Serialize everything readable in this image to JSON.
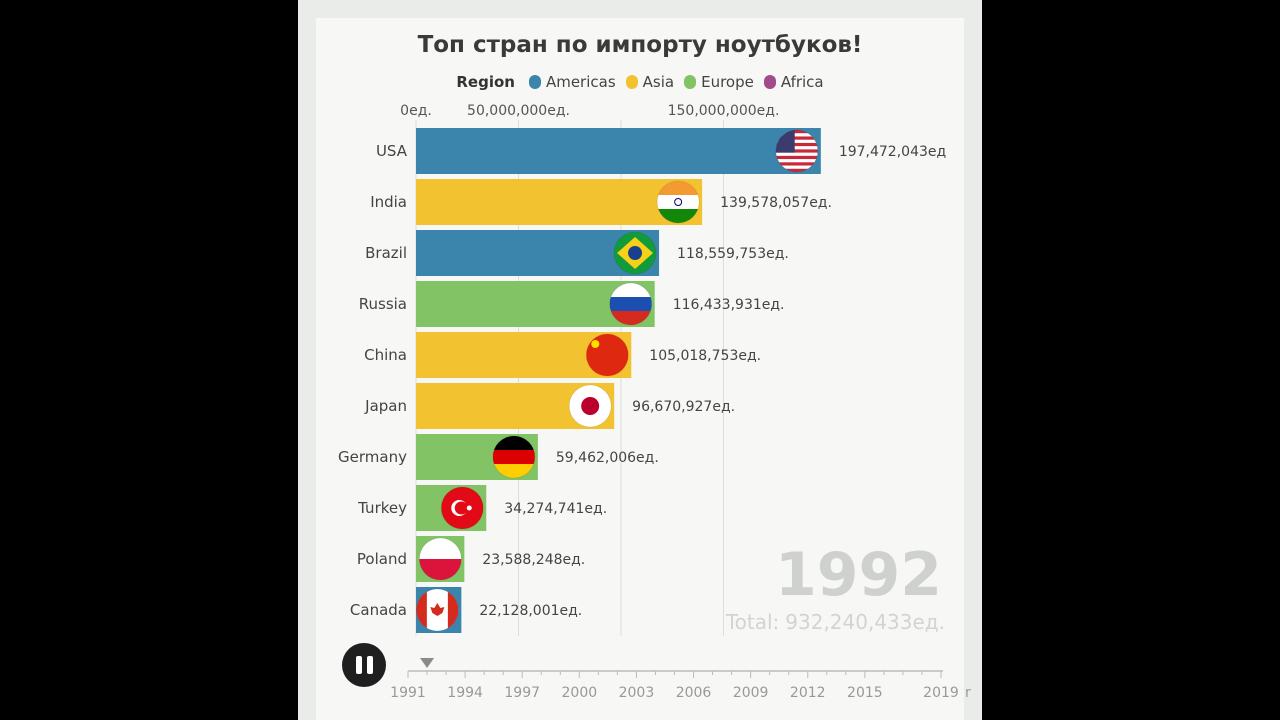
{
  "chart_data": {
    "type": "bar",
    "title": "Топ стран по импорту ноутбуков!",
    "legend": {
      "title": "Region",
      "items": [
        {
          "name": "Americas",
          "color": "#3b84ab"
        },
        {
          "name": "Asia",
          "color": "#f2c230"
        },
        {
          "name": "Europe",
          "color": "#82c366"
        },
        {
          "name": "Africa",
          "color": "#a24b8c"
        }
      ]
    },
    "x_ticks": [
      {
        "value": 0,
        "label": "0ед."
      },
      {
        "value": 50000000,
        "label": "50,000,000ед."
      },
      {
        "value": 150000000,
        "label": "150,000,000ед."
      }
    ],
    "xlim": [
      0,
      200000000
    ],
    "bars": [
      {
        "country": "USA",
        "value": 197472043,
        "label": "197,472,043ед",
        "region": "Americas",
        "flag": "us-flag"
      },
      {
        "country": "India",
        "value": 139578057,
        "label": "139,578,057ед.",
        "region": "Asia",
        "flag": "india-flag"
      },
      {
        "country": "Brazil",
        "value": 118559753,
        "label": "118,559,753ед.",
        "region": "Americas",
        "flag": "brazil-flag"
      },
      {
        "country": "Russia",
        "value": 116433931,
        "label": "116,433,931ед.",
        "region": "Europe",
        "flag": "russia-flag"
      },
      {
        "country": "China",
        "value": 105018753,
        "label": "105,018,753ед.",
        "region": "Asia",
        "flag": "china-flag"
      },
      {
        "country": "Japan",
        "value": 96670927,
        "label": "96,670,927ед.",
        "region": "Asia",
        "flag": "japan-flag"
      },
      {
        "country": "Germany",
        "value": 59462006,
        "label": "59,462,006ед.",
        "region": "Europe",
        "flag": "germany-flag"
      },
      {
        "country": "Turkey",
        "value": 34274741,
        "label": "34,274,741ед.",
        "region": "Europe",
        "flag": "turkey-flag"
      },
      {
        "country": "Poland",
        "value": 23588248,
        "label": "23,588,248ед.",
        "region": "Europe",
        "flag": "poland-flag"
      },
      {
        "country": "Canada",
        "value": 22128001,
        "label": "22,128,001ед.",
        "region": "Americas",
        "flag": "canada-flag"
      }
    ],
    "current_year": "1992",
    "total_label": "Total:",
    "total_value": "932,240,433ед.",
    "timeline": {
      "years": [
        "1991",
        "1994",
        "1997",
        "2000",
        "2003",
        "2006",
        "2009",
        "2012",
        "2015",
        "2019"
      ],
      "range": [
        1991,
        2019
      ],
      "current": 1992,
      "trailing_text": "r"
    }
  },
  "controls": {
    "pause_icon": "pause-icon"
  }
}
